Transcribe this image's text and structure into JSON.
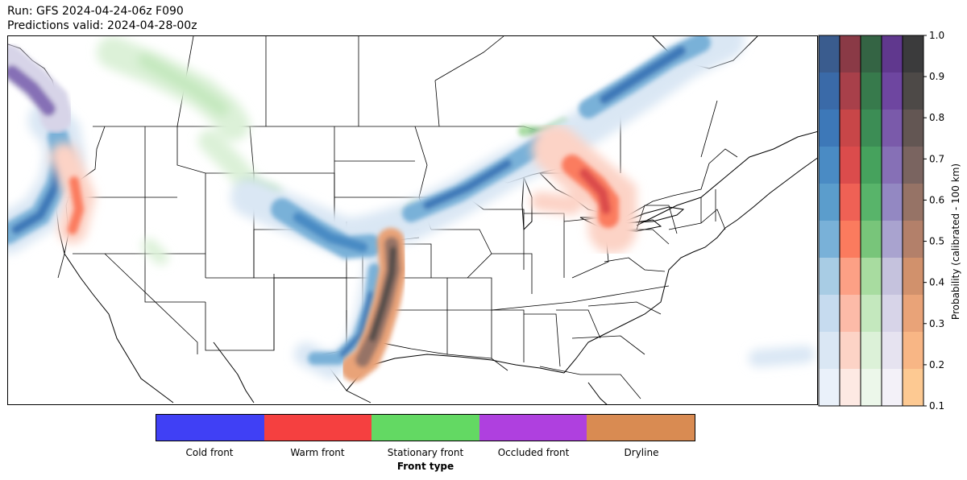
{
  "header": {
    "run": "Run: GFS 2024-04-24-06z F090",
    "valid": "Predictions valid: 2024-04-28-00z"
  },
  "colorbar": {
    "label": "Probability (calibrated - 100 km)",
    "ticks": [
      "0.1",
      "0.2",
      "0.3",
      "0.4",
      "0.5",
      "0.6",
      "0.7",
      "0.8",
      "0.9",
      "1.0"
    ],
    "range": [
      0.1,
      1.0
    ],
    "columns": [
      {
        "front": "cold",
        "colors": [
          "#eaf1fa",
          "#dae7f4",
          "#c6dbef",
          "#a8cce4",
          "#79b1d8",
          "#5b9dcc",
          "#4a8bc4",
          "#3d78b8",
          "#3a6aa8",
          "#3a5c8e"
        ]
      },
      {
        "front": "warm",
        "colors": [
          "#fde9e3",
          "#fcd3c6",
          "#fcbba8",
          "#fca085",
          "#fb7b5e",
          "#ef6155",
          "#db4c4c",
          "#c84648",
          "#a8404a",
          "#8a3a46"
        ]
      },
      {
        "front": "stationary",
        "colors": [
          "#ecf7ea",
          "#dcf1d8",
          "#c4e8be",
          "#a8dca0",
          "#78c57a",
          "#58b46a",
          "#46a25d",
          "#3c8d55",
          "#377a4c",
          "#346444"
        ]
      },
      {
        "front": "occluded",
        "colors": [
          "#f3f1f8",
          "#e6e3f0",
          "#d7d4e8",
          "#c5c2dd",
          "#a9a3cf",
          "#9388c2",
          "#8670b6",
          "#7a5aaa",
          "#6e46a0",
          "#60388e"
        ]
      },
      {
        "front": "dryline",
        "colors": [
          "#fdc992",
          "#f8b685",
          "#e9a378",
          "#d1916c",
          "#b3806a",
          "#967366",
          "#7a6460",
          "#635653",
          "#4d4947",
          "#3b3b3c"
        ]
      }
    ]
  },
  "legend": {
    "title": "Front type",
    "items": [
      {
        "label": "Cold front",
        "color": "#4040f5"
      },
      {
        "label": "Warm front",
        "color": "#f54040"
      },
      {
        "label": "Stationary front",
        "color": "#63d963"
      },
      {
        "label": "Occluded front",
        "color": "#af40df"
      },
      {
        "label": "Dryline",
        "color": "#d98b52"
      }
    ]
  }
}
